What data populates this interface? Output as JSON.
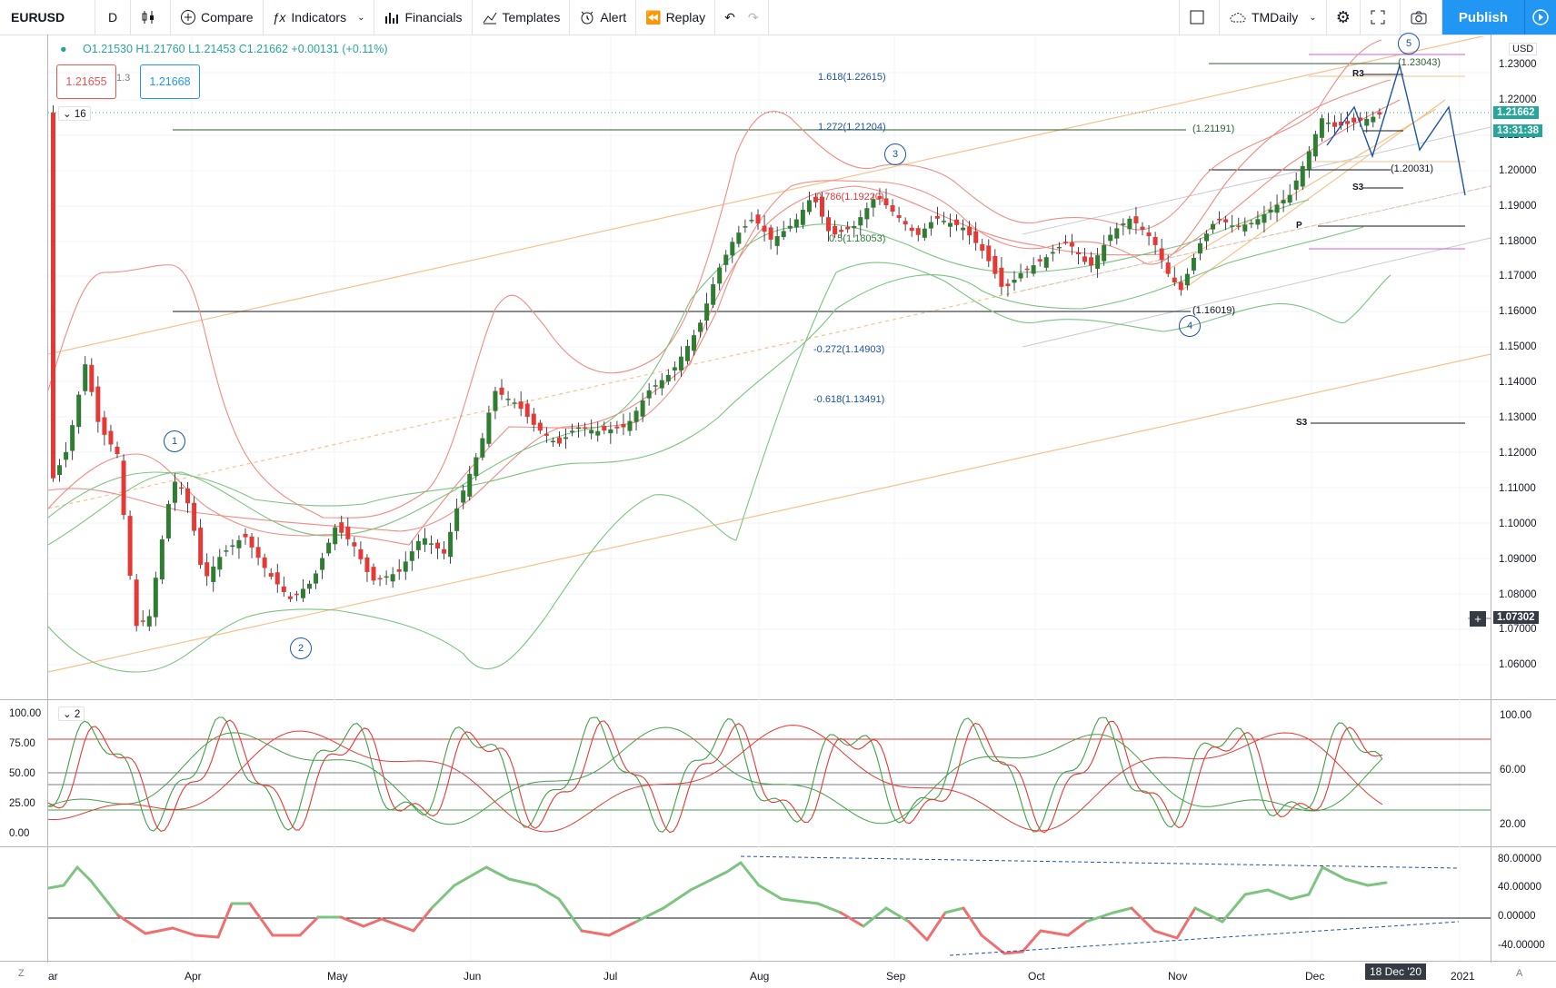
{
  "toolbar": {
    "symbol": "EURUSD",
    "interval": "D",
    "compare": "Compare",
    "indicators": "Indicators",
    "financials": "Financials",
    "templates": "Templates",
    "alert": "Alert",
    "replay": "Replay",
    "layout_name": "TMDaily",
    "publish": "Publish"
  },
  "legend": {
    "ohlc": "O1.21530 H1.21760 L1.21453 C1.21662 +0.00131 (+0.11%)",
    "sell_price": "1.21655",
    "spread": "1.3",
    "buy_price": "1.21668",
    "main_collapse": "16",
    "osc_collapse": "2"
  },
  "price_axis": {
    "currency": "USD",
    "ticks": [
      "1.23000",
      "1.22000",
      "1.21000",
      "1.20000",
      "1.19000",
      "1.18000",
      "1.17000",
      "1.16000",
      "1.15000",
      "1.14000",
      "1.13000",
      "1.12000",
      "1.11000",
      "1.10000",
      "1.09000",
      "1.08000",
      "1.07000",
      "1.06000"
    ],
    "last_price": "1.21662",
    "countdown": "13:31:38",
    "crosshair_price": "1.07302"
  },
  "osc1_axis": {
    "right_ticks": [
      "100.00",
      "60.00",
      "20.00"
    ],
    "left_ticks": [
      "100.00",
      "75.00",
      "50.00",
      "25.00",
      "0.00"
    ]
  },
  "osc2_axis": {
    "ticks": [
      "80.00000",
      "40.00000",
      "0.00000",
      "-40.00000"
    ]
  },
  "time_axis": {
    "labels": [
      "ar",
      "Apr",
      "May",
      "Jun",
      "Jul",
      "Aug",
      "Sep",
      "Oct",
      "Nov",
      "Dec",
      "2021"
    ],
    "current_date": "18 Dec '20",
    "left_btn": "Z",
    "right_btn": "A"
  },
  "annotations": {
    "fib_1618": "1.618(1.22615)",
    "fib_1272": "1.272(1.21204)",
    "fib_0786": "0.786(1.19220)",
    "fib_05": "0.5(1.18053)",
    "fib_n0272": "-0.272(1.14903)",
    "fib_n0618": "-0.618(1.13491)",
    "level_123043": "(1.23043)",
    "level_121191": "(1.21191)",
    "level_120031": "(1.20031)",
    "level_116019": "(1.16019)",
    "pivot_r3": "R3",
    "pivot_s3": "S3",
    "pivot_p": "P",
    "pivot_s3_low": "S3",
    "wave1": "1",
    "wave2": "2",
    "wave3": "3",
    "wave4": "4",
    "wave5": "5"
  },
  "colors": {
    "up": "#26a69a",
    "down": "#ef5350",
    "candle_up": "#2e7d32",
    "candle_down": "#e53935",
    "accent": "#2196f3",
    "bb_red": "#f28b82",
    "bb_green": "#7cc47f",
    "channel": "#f6c28b",
    "wave": "#1e53a5"
  }
}
